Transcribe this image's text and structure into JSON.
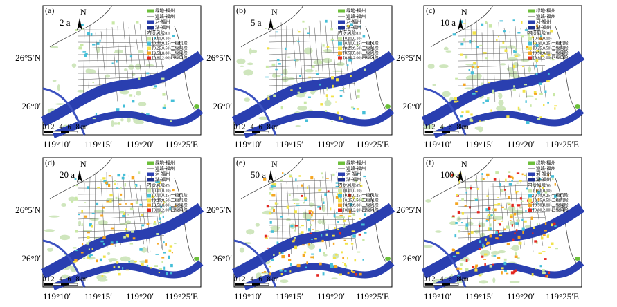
{
  "panels": [
    {
      "label": "(a)",
      "period": "2 a"
    },
    {
      "label": "(b)",
      "period": "5 a"
    },
    {
      "label": "(c)",
      "period": "10 a"
    },
    {
      "label": "(d)",
      "period": "20 a"
    },
    {
      "label": "(e)",
      "period": "50 a"
    },
    {
      "label": "(f)",
      "period": "100 a"
    }
  ],
  "north": "N",
  "legend": {
    "layers": [
      "绿地-福州",
      "道路-福州",
      "河-福州",
      "湖-福州"
    ],
    "title": "内涝风险/m",
    "classes": [
      "[0.01,0.10)",
      "[0.10,0.25)一级风险",
      "[0.25,0.50)二级风险",
      "[0.50,0.80)三级风险",
      "[0.80,2.00)四级风险"
    ]
  },
  "scale_bar": {
    "labels": [
      "0",
      "1",
      "2",
      "4",
      "6",
      "8"
    ],
    "unit": "km"
  },
  "lat_labels": [
    "26°5′N",
    "26°0′"
  ],
  "lon_labels": [
    "119°10′",
    "119°15′",
    "119°20′",
    "119°25′E"
  ]
}
